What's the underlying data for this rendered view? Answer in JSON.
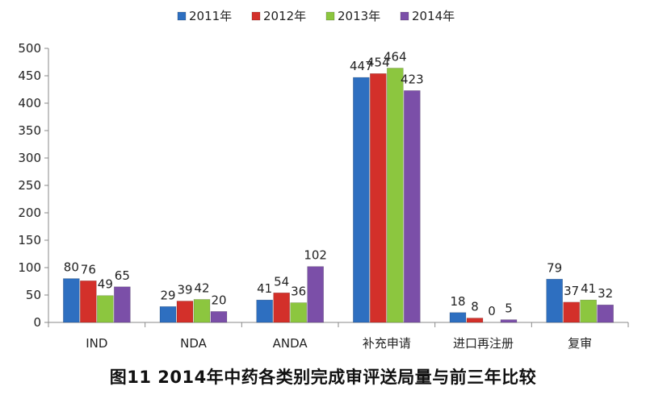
{
  "caption": "图11 2014年中药各类别完成审评送局量与前三年比较",
  "chart_data": {
    "type": "bar",
    "title": "",
    "xlabel": "",
    "ylabel": "",
    "ylim": [
      0,
      500
    ],
    "yticks": [
      0,
      50,
      100,
      150,
      200,
      250,
      300,
      350,
      400,
      450,
      500
    ],
    "grid": false,
    "legend_position": "top",
    "categories": [
      "IND",
      "NDA",
      "ANDA",
      "补充申请",
      "进口再注册",
      "复审"
    ],
    "series": [
      {
        "name": "2011年",
        "color": "#2e6fc0",
        "values": [
          80,
          29,
          41,
          447,
          18,
          79
        ]
      },
      {
        "name": "2012年",
        "color": "#d3302a",
        "values": [
          76,
          39,
          54,
          454,
          8,
          37
        ]
      },
      {
        "name": "2013年",
        "color": "#8cc63f",
        "values": [
          49,
          42,
          36,
          464,
          0,
          41
        ]
      },
      {
        "name": "2014年",
        "color": "#7b4fa8",
        "values": [
          65,
          20,
          102,
          423,
          5,
          32
        ]
      }
    ]
  }
}
